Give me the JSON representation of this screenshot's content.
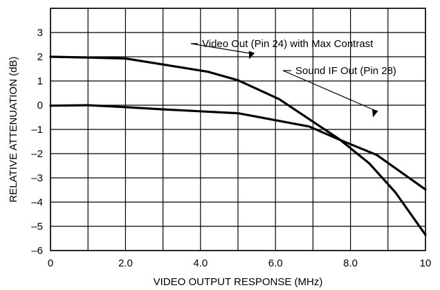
{
  "chart_data": {
    "type": "line",
    "title": "",
    "xlabel": "VIDEO OUTPUT RESPONSE (MHz)",
    "ylabel": "RELATIVE ATTENUATION (dB)",
    "xlim": [
      0,
      10
    ],
    "ylim": [
      -6,
      4
    ],
    "x_ticks": [
      0,
      1,
      2,
      3,
      4,
      5,
      6,
      7,
      8,
      9,
      10
    ],
    "x_tick_labels": [
      {
        "value": 0,
        "label": "0"
      },
      {
        "value": 2,
        "label": "2.0"
      },
      {
        "value": 4,
        "label": "4.0"
      },
      {
        "value": 6,
        "label": "6.0"
      },
      {
        "value": 8,
        "label": "8.0"
      },
      {
        "value": 10,
        "label": "10"
      }
    ],
    "y_ticks": [
      -6,
      -5,
      -4,
      -3,
      -2,
      -1,
      0,
      1,
      2,
      3,
      4
    ],
    "y_tick_labels": [
      {
        "value": 3,
        "label": "3"
      },
      {
        "value": 2,
        "label": "2"
      },
      {
        "value": 1,
        "label": "1"
      },
      {
        "value": 0,
        "label": "0"
      },
      {
        "value": -1,
        "label": "–1"
      },
      {
        "value": -2,
        "label": "–2"
      },
      {
        "value": -3,
        "label": "–3"
      },
      {
        "value": -4,
        "label": "–4"
      },
      {
        "value": -5,
        "label": "–5"
      },
      {
        "value": -6,
        "label": "–6"
      }
    ],
    "grid": true,
    "series": [
      {
        "name": "Video Out (Pin 24) with Max Contrast",
        "x": [
          0,
          1.0,
          2.0,
          3.0,
          4.2,
          5.0,
          6.1,
          7.0,
          7.7,
          8.5,
          9.2,
          10.0
        ],
        "y": [
          2.0,
          1.97,
          1.93,
          1.68,
          1.38,
          1.03,
          0.25,
          -0.68,
          -1.4,
          -2.4,
          -3.6,
          -5.35
        ]
      },
      {
        "name": "Sound IF Out (Pin 28)",
        "x": [
          0,
          1.0,
          2.0,
          3.0,
          4.0,
          5.0,
          6.0,
          6.9,
          7.7,
          8.7,
          10.0
        ],
        "y": [
          -0.02,
          0.0,
          -0.08,
          -0.17,
          -0.25,
          -0.33,
          -0.62,
          -0.88,
          -1.42,
          -2.05,
          -3.48
        ]
      }
    ],
    "annotations": [
      {
        "text": "Video Out (Pin 24) with Max Contrast",
        "arrow_to": {
          "x": 5.3,
          "y": 1.9
        }
      },
      {
        "text": "Sound IF Out (Pin 28)",
        "arrow_to": {
          "x": 8.6,
          "y": -0.5
        }
      }
    ]
  }
}
